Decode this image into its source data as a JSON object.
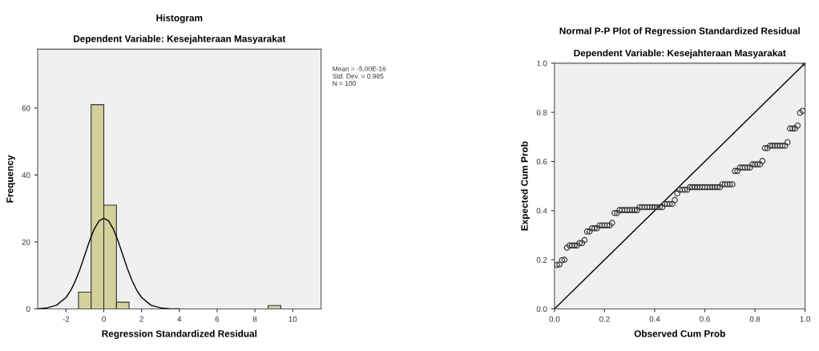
{
  "chart_data": [
    {
      "type": "histogram",
      "title": "Histogram",
      "subtitle": "Dependent Variable: Kesejahteraan Masyarakat",
      "xlabel": "Regression Standardized Residual",
      "ylabel": "Frequency",
      "series": [
        {
          "color": "#d4d09a",
          "bins": [
            -1.34,
            -0.67,
            0.0,
            0.67,
            1.34,
            2.01,
            2.68,
            3.35,
            4.02,
            4.69,
            5.36,
            6.03,
            6.7,
            7.37,
            8.04,
            8.7,
            9.37
          ],
          "values": [
            5,
            61,
            31,
            2,
            0,
            0,
            0,
            0,
            0,
            0,
            0,
            0,
            0,
            0,
            0,
            1
          ]
        },
        {
          "type": "line",
          "color": "#000000",
          "x": [
            -3.5,
            -3.0,
            -2.5,
            -2.0,
            -1.75,
            -1.5,
            -1.25,
            -1.0,
            -0.75,
            -0.5,
            -0.25,
            0.0,
            0.25,
            0.5,
            0.75,
            1.0,
            1.25,
            1.5,
            1.75,
            2.0,
            2.5,
            3.0,
            3.5,
            4.0
          ],
          "values": [
            0.0,
            0.3,
            1.1,
            3.4,
            5.5,
            8.4,
            12.0,
            16.2,
            20.4,
            23.9,
            26.3,
            27.1,
            26.3,
            23.9,
            20.4,
            16.2,
            12.0,
            8.4,
            5.5,
            3.4,
            1.1,
            0.3,
            0.0,
            0.0
          ]
        }
      ],
      "xlim": [
        -3.5,
        11.5
      ],
      "xticks": [
        {
          "value": -2,
          "label": "-2"
        },
        0,
        2,
        4,
        6,
        8,
        10
      ],
      "ylim": [
        0,
        77.6
      ],
      "yticks": [
        0,
        20,
        40,
        60
      ],
      "annotations": [
        "Mean = -5.00E-16",
        "Std. Dev. = 0.985",
        "N = 100"
      ]
    },
    {
      "type": "scatter",
      "title": "Normal P-P Plot of Regression Standardized Residual",
      "subtitle": "Dependent Variable: Kesejahteraan Masyarakat",
      "xlabel": "Observed Cum Prob",
      "ylabel": "Expected Cum Prob",
      "series": [
        {
          "marker": "circle",
          "color": "#333333",
          "x": [
            0.01,
            0.02,
            0.03,
            0.04,
            0.05,
            0.06,
            0.07,
            0.08,
            0.09,
            0.1,
            0.11,
            0.12,
            0.13,
            0.14,
            0.15,
            0.16,
            0.17,
            0.18,
            0.19,
            0.2,
            0.21,
            0.22,
            0.23,
            0.24,
            0.25,
            0.26,
            0.27,
            0.28,
            0.29,
            0.3,
            0.31,
            0.32,
            0.33,
            0.34,
            0.35,
            0.36,
            0.37,
            0.38,
            0.39,
            0.4,
            0.41,
            0.42,
            0.43,
            0.44,
            0.45,
            0.46,
            0.47,
            0.48,
            0.49,
            0.5,
            0.51,
            0.52,
            0.53,
            0.54,
            0.55,
            0.56,
            0.57,
            0.58,
            0.59,
            0.6,
            0.61,
            0.62,
            0.63,
            0.64,
            0.65,
            0.66,
            0.67,
            0.68,
            0.69,
            0.7,
            0.71,
            0.72,
            0.73,
            0.74,
            0.75,
            0.76,
            0.77,
            0.78,
            0.79,
            0.8,
            0.81,
            0.82,
            0.83,
            0.84,
            0.85,
            0.86,
            0.87,
            0.88,
            0.89,
            0.9,
            0.91,
            0.92,
            0.93,
            0.94,
            0.95,
            0.96,
            0.97,
            0.98,
            0.99,
            1.0
          ],
          "values": [
            0.179,
            0.181,
            0.198,
            0.2,
            0.249,
            0.258,
            0.258,
            0.258,
            0.258,
            0.268,
            0.268,
            0.28,
            0.315,
            0.315,
            0.328,
            0.328,
            0.328,
            0.34,
            0.34,
            0.34,
            0.34,
            0.34,
            0.35,
            0.39,
            0.39,
            0.402,
            0.402,
            0.402,
            0.402,
            0.402,
            0.402,
            0.402,
            0.402,
            0.414,
            0.414,
            0.414,
            0.414,
            0.414,
            0.414,
            0.414,
            0.414,
            0.414,
            0.414,
            0.427,
            0.427,
            0.427,
            0.427,
            0.443,
            0.47,
            0.485,
            0.485,
            0.485,
            0.485,
            0.495,
            0.495,
            0.495,
            0.495,
            0.495,
            0.495,
            0.495,
            0.495,
            0.495,
            0.495,
            0.495,
            0.495,
            0.495,
            0.507,
            0.507,
            0.507,
            0.507,
            0.507,
            0.561,
            0.561,
            0.575,
            0.575,
            0.575,
            0.575,
            0.575,
            0.588,
            0.588,
            0.588,
            0.588,
            0.602,
            0.654,
            0.654,
            0.664,
            0.664,
            0.664,
            0.664,
            0.664,
            0.664,
            0.664,
            0.678,
            0.734,
            0.734,
            0.734,
            0.746,
            0.798,
            0.806,
            1.0
          ]
        },
        {
          "type": "line",
          "color": "#000000",
          "x": [
            0,
            1
          ],
          "values": [
            0,
            1
          ]
        }
      ],
      "xlim": [
        0,
        1
      ],
      "xticks": [
        {
          "value": 0,
          "label": "0.0"
        },
        0.2,
        0.4,
        0.6,
        0.8,
        {
          "value": 1,
          "label": "1.0"
        }
      ],
      "ylim": [
        0,
        1
      ],
      "yticks": [
        {
          "value": 0,
          "label": "0.0"
        },
        0.2,
        0.4,
        0.6,
        0.8,
        {
          "value": 1,
          "label": "1.0"
        }
      ]
    }
  ]
}
